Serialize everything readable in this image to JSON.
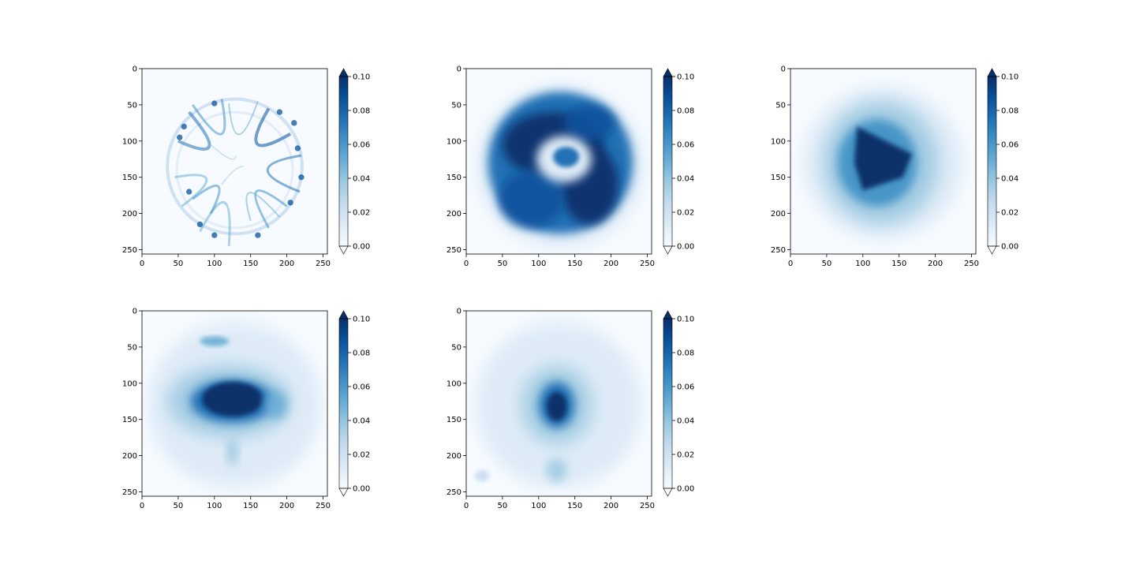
{
  "chart_data": [
    {
      "type": "heatmap",
      "title": "",
      "xlabel": "",
      "ylabel": "",
      "image_size": [
        256,
        256
      ],
      "x_ticks": [
        0,
        50,
        100,
        150,
        200,
        250
      ],
      "y_ticks": [
        0,
        50,
        100,
        150,
        200,
        250
      ],
      "x_tick_labels": [
        "0",
        "50",
        "100",
        "150",
        "200",
        "250"
      ],
      "y_tick_labels": [
        "0",
        "50",
        "100",
        "150",
        "200",
        "250"
      ],
      "colormap": "Blues",
      "vmin": 0.0,
      "vmax": 0.1,
      "colorbar_extend": "both",
      "colorbar_ticks": [
        0.0,
        0.02,
        0.04,
        0.06,
        0.08,
        0.1
      ],
      "colorbar_tick_labels": [
        "0.00",
        "0.02",
        "0.04",
        "0.06",
        "0.08",
        "0.10"
      ],
      "pattern": "thin speckled ring of radius about 90 centred near (128,128), mostly near 0 with fine dark streaks"
    },
    {
      "type": "heatmap",
      "title": "",
      "xlabel": "",
      "ylabel": "",
      "image_size": [
        256,
        256
      ],
      "x_ticks": [
        0,
        50,
        100,
        150,
        200,
        250
      ],
      "y_ticks": [
        0,
        50,
        100,
        150,
        200,
        250
      ],
      "x_tick_labels": [
        "0",
        "50",
        "100",
        "150",
        "200",
        "250"
      ],
      "y_tick_labels": [
        "0",
        "50",
        "100",
        "150",
        "200",
        "250"
      ],
      "colormap": "Blues",
      "vmin": 0.0,
      "vmax": 0.1,
      "colorbar_extend": "both",
      "colorbar_ticks": [
        0.0,
        0.02,
        0.04,
        0.06,
        0.08,
        0.1
      ],
      "colorbar_tick_labels": [
        "0.00",
        "0.02",
        "0.04",
        "0.06",
        "0.08",
        "0.10"
      ],
      "pattern": "thick saturated disc of radius about 95 with a light inner ring around (135,125)"
    },
    {
      "type": "heatmap",
      "title": "",
      "xlabel": "",
      "ylabel": "",
      "image_size": [
        256,
        256
      ],
      "x_ticks": [
        0,
        50,
        100,
        150,
        200,
        250
      ],
      "y_ticks": [
        0,
        50,
        100,
        150,
        200,
        250
      ],
      "x_tick_labels": [
        "0",
        "50",
        "100",
        "150",
        "200",
        "250"
      ],
      "y_tick_labels": [
        "0",
        "50",
        "100",
        "150",
        "200",
        "250"
      ],
      "colormap": "Blues",
      "vmin": 0.0,
      "vmax": 0.1,
      "colorbar_extend": "both",
      "colorbar_ticks": [
        0.0,
        0.02,
        0.04,
        0.06,
        0.08,
        0.1
      ],
      "colorbar_tick_labels": [
        "0.00",
        "0.02",
        "0.04",
        "0.06",
        "0.08",
        "0.10"
      ],
      "pattern": "saturated triangular blob between x 90-170 and y 70-170 inside a broad medium halo"
    },
    {
      "type": "heatmap",
      "title": "",
      "xlabel": "",
      "ylabel": "",
      "image_size": [
        256,
        256
      ],
      "x_ticks": [
        0,
        50,
        100,
        150,
        200,
        250
      ],
      "y_ticks": [
        0,
        50,
        100,
        150,
        200,
        250
      ],
      "x_tick_labels": [
        "0",
        "50",
        "100",
        "150",
        "200",
        "250"
      ],
      "y_tick_labels": [
        "0",
        "50",
        "100",
        "150",
        "200",
        "250"
      ],
      "colormap": "Blues",
      "vmin": 0.0,
      "vmax": 0.1,
      "colorbar_extend": "both",
      "colorbar_ticks": [
        0.0,
        0.02,
        0.04,
        0.06,
        0.08,
        0.1
      ],
      "colorbar_tick_labels": [
        "0.00",
        "0.02",
        "0.04",
        "0.06",
        "0.08",
        "0.10"
      ],
      "pattern": "saturated horizontal blob centred near (125,125), x 65-160, with faint streaks below"
    },
    {
      "type": "heatmap",
      "title": "",
      "xlabel": "",
      "ylabel": "",
      "image_size": [
        256,
        256
      ],
      "x_ticks": [
        0,
        50,
        100,
        150,
        200,
        250
      ],
      "y_ticks": [
        0,
        50,
        100,
        150,
        200,
        250
      ],
      "x_tick_labels": [
        "0",
        "50",
        "100",
        "150",
        "200",
        "250"
      ],
      "y_tick_labels": [
        "0",
        "50",
        "100",
        "150",
        "200",
        "250"
      ],
      "colormap": "Blues",
      "vmin": 0.0,
      "vmax": 0.1,
      "colorbar_extend": "both",
      "colorbar_ticks": [
        0.0,
        0.02,
        0.04,
        0.06,
        0.08,
        0.1
      ],
      "colorbar_tick_labels": [
        "0.00",
        "0.02",
        "0.04",
        "0.06",
        "0.08",
        "0.10"
      ],
      "pattern": "small dark spot centred near (125,130) with a weaker spot near (125,220)"
    }
  ]
}
